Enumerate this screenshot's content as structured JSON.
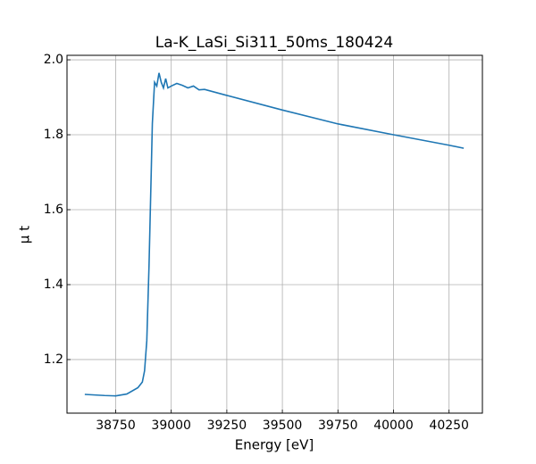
{
  "chart_data": {
    "type": "line",
    "title": "La-K_LaSi_Si311_50ms_180424",
    "x_label": "Energy [eV]",
    "y_label": "μ t",
    "x": [
      38611,
      38700,
      38750,
      38800,
      38850,
      38870,
      38880,
      38890,
      38900,
      38910,
      38915,
      38925,
      38935,
      38945,
      38955,
      38965,
      38975,
      38985,
      39000,
      39025,
      39050,
      39075,
      39100,
      39125,
      39150,
      39250,
      39500,
      39750,
      40000,
      40250,
      40316
    ],
    "series": [
      {
        "name": "μ t",
        "color": "#1f77b4",
        "values": [
          1.107,
          1.104,
          1.103,
          1.108,
          1.125,
          1.14,
          1.17,
          1.25,
          1.45,
          1.7,
          1.83,
          1.94,
          1.93,
          1.965,
          1.94,
          1.925,
          1.95,
          1.925,
          1.93,
          1.937,
          1.932,
          1.925,
          1.93,
          1.92,
          1.921,
          1.905,
          1.866,
          1.829,
          1.8,
          1.772,
          1.764
        ]
      }
    ],
    "xlim": [
      38531,
      40400
    ],
    "ylim": [
      1.057,
      2.012
    ],
    "xticks": [
      38750,
      39000,
      39250,
      39500,
      39750,
      40000,
      40250
    ],
    "yticks": [
      1.2,
      1.4,
      1.6,
      1.8,
      {
        "value": 2,
        "label": "2.0"
      }
    ],
    "grid": true
  }
}
